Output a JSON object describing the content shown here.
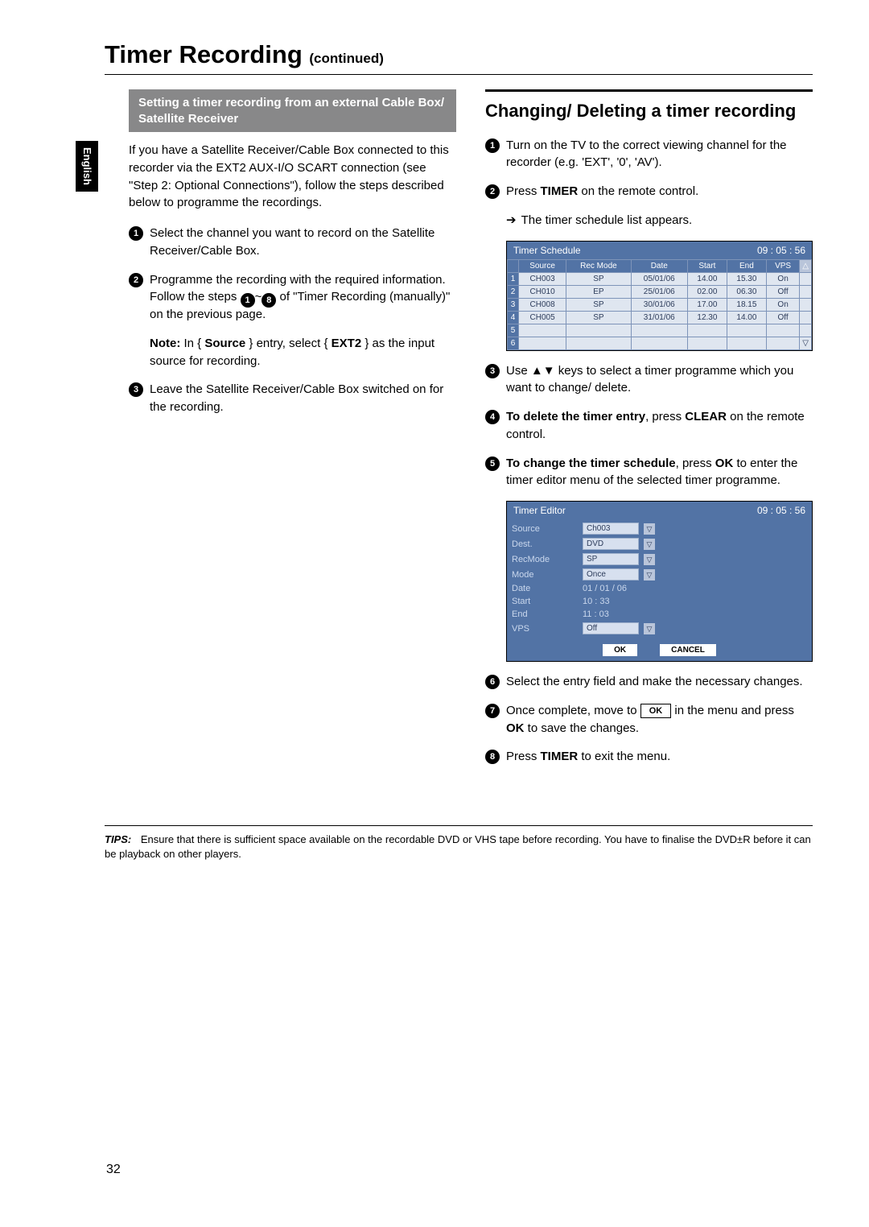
{
  "language_tab": "English",
  "page_title_main": "Timer Recording",
  "page_title_cont": "(continued)",
  "left": {
    "subsection": "Setting a timer recording from an external Cable Box/ Satellite Receiver",
    "intro": "If you have a Satellite Receiver/Cable Box connected to this recorder via the EXT2 AUX-I/O SCART connection (see \"Step 2: Optional Connections\"), follow the steps described below to programme the recordings.",
    "step1": "Select the channel you want to record on the Satellite Receiver/Cable Box.",
    "step2a": "Programme the recording with the required information. Follow the steps ",
    "step2b": " of \"Timer Recording (manually)\" on the previous page.",
    "step2_range_a": "1",
    "step2_range_sep": "~",
    "step2_range_b": "8",
    "note_label": "Note:",
    "note_1": " In { ",
    "note_src": "Source",
    "note_2": " } entry, select { ",
    "note_ext": "EXT2",
    "note_3": " } as the input source for recording.",
    "step3": "Leave the Satellite Receiver/Cable Box switched on for the recording."
  },
  "right": {
    "section_head": "Changing/ Deleting a timer recording",
    "step1": "Turn on the TV to the correct viewing channel for the recorder (e.g. 'EXT', '0', 'AV').",
    "step2_a": "Press ",
    "step2_timer": "TIMER",
    "step2_b": " on the remote control.",
    "step2_res": "The timer schedule list appears.",
    "schedule": {
      "title": "Timer Schedule",
      "time": "09 : 05 : 56",
      "cols": [
        "",
        "Source",
        "Rec Mode",
        "Date",
        "Start",
        "End",
        "VPS",
        ""
      ],
      "rows": [
        [
          "1",
          "CH003",
          "SP",
          "05/01/06",
          "14.00",
          "15.30",
          "On"
        ],
        [
          "2",
          "CH010",
          "EP",
          "25/01/06",
          "02.00",
          "06.30",
          "Off"
        ],
        [
          "3",
          "CH008",
          "SP",
          "30/01/06",
          "17.00",
          "18.15",
          "On"
        ],
        [
          "4",
          "CH005",
          "SP",
          "31/01/06",
          "12.30",
          "14.00",
          "Off"
        ],
        [
          "5",
          "",
          "",
          "",
          "",
          "",
          ""
        ],
        [
          "6",
          "",
          "",
          "",
          "",
          "",
          ""
        ]
      ]
    },
    "step3": "Use ▲▼ keys to select a timer programme which you want to change/ delete.",
    "step4_a": "To delete the timer entry",
    "step4_b": ", press ",
    "step4_clear": "CLEAR",
    "step4_c": " on the remote control.",
    "step5_a": "To change the timer schedule",
    "step5_b": ", press ",
    "step5_ok": "OK",
    "step5_c": " to enter the timer editor menu of the selected timer programme.",
    "editor": {
      "title": "Timer Editor",
      "time": "09 : 05 : 56",
      "rows": [
        {
          "k": "Source",
          "v": "Ch003",
          "dd": true
        },
        {
          "k": "Dest.",
          "v": "DVD",
          "dd": true
        },
        {
          "k": "RecMode",
          "v": "SP",
          "dd": true
        },
        {
          "k": "Mode",
          "v": "Once",
          "dd": true
        },
        {
          "k": "Date",
          "plain": "01 / 01 / 06"
        },
        {
          "k": "Start",
          "plain": "10 : 33"
        },
        {
          "k": "End",
          "plain": "11 : 03"
        },
        {
          "k": "VPS",
          "v": "Off",
          "dd": true
        }
      ],
      "ok": "OK",
      "cancel": "CANCEL"
    },
    "step6": "Select the entry field and make the necessary changes.",
    "step7_a": "Once complete, move to ",
    "step7_ok": "OK",
    "step7_b": " in the menu and press ",
    "step7_okb": "OK",
    "step7_c": " to save the changes.",
    "step8_a": "Press ",
    "step8_timer": "TIMER",
    "step8_b": " to exit the menu."
  },
  "tips": {
    "label": "TIPS:",
    "text": "Ensure that there is sufficient space available on the recordable DVD or VHS tape before recording. You have to finalise the DVD±R before it can be playback on other players."
  },
  "page_number": "32"
}
